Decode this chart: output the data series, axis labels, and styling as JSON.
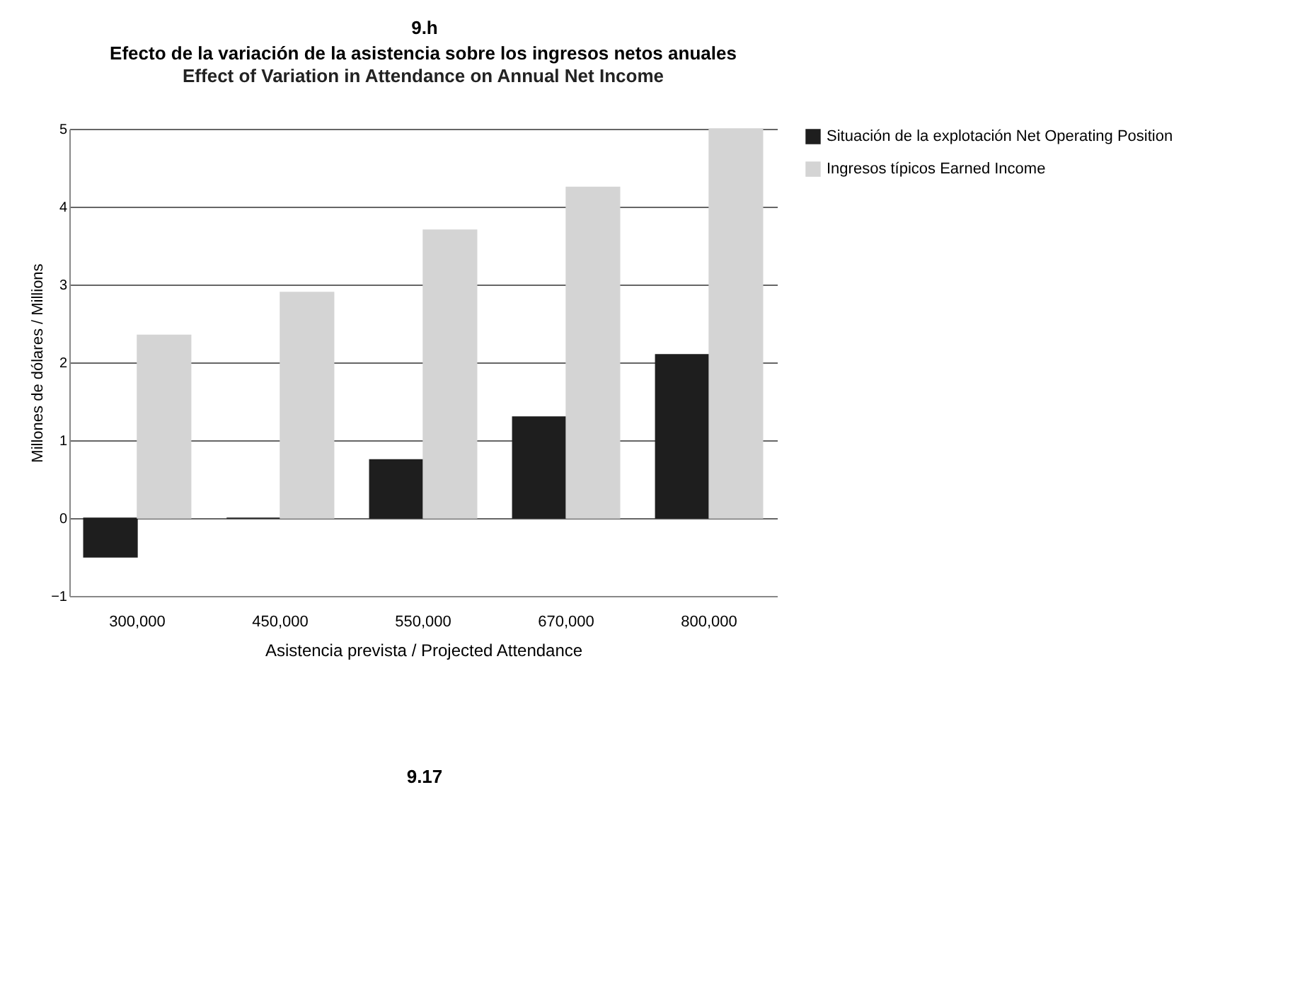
{
  "chart_data": {
    "type": "bar",
    "title": "Efecto de la variación de la asistencia sobre los ingresos netos anuales",
    "subtitle": "Effect of Variation in Attendance on Annual Net Income",
    "xlabel": "Asistencia prevista / Projected Attendance",
    "ylabel": "Millones de dólares / Millions",
    "annotations": [
      "9.h",
      "9.17"
    ],
    "categories": [
      "300,000",
      "450,000",
      "550,000",
      "670,000",
      "800,000"
    ],
    "series": [
      {
        "name": "Situación de la explotación Net Operating Position",
        "color": "#1e1e1e",
        "values": [
          -0.5,
          0,
          0.75,
          1.3,
          2.1
        ]
      },
      {
        "name": "Ingresos típicos Earned Income",
        "color": "#d4d4d4",
        "values": [
          2.35,
          2.9,
          3.7,
          4.25,
          5.0
        ]
      }
    ],
    "ylim": [
      -1,
      5
    ],
    "yticks": [
      -1,
      0,
      1,
      2,
      3,
      4,
      5
    ],
    "grid": "y",
    "legend": "right"
  }
}
